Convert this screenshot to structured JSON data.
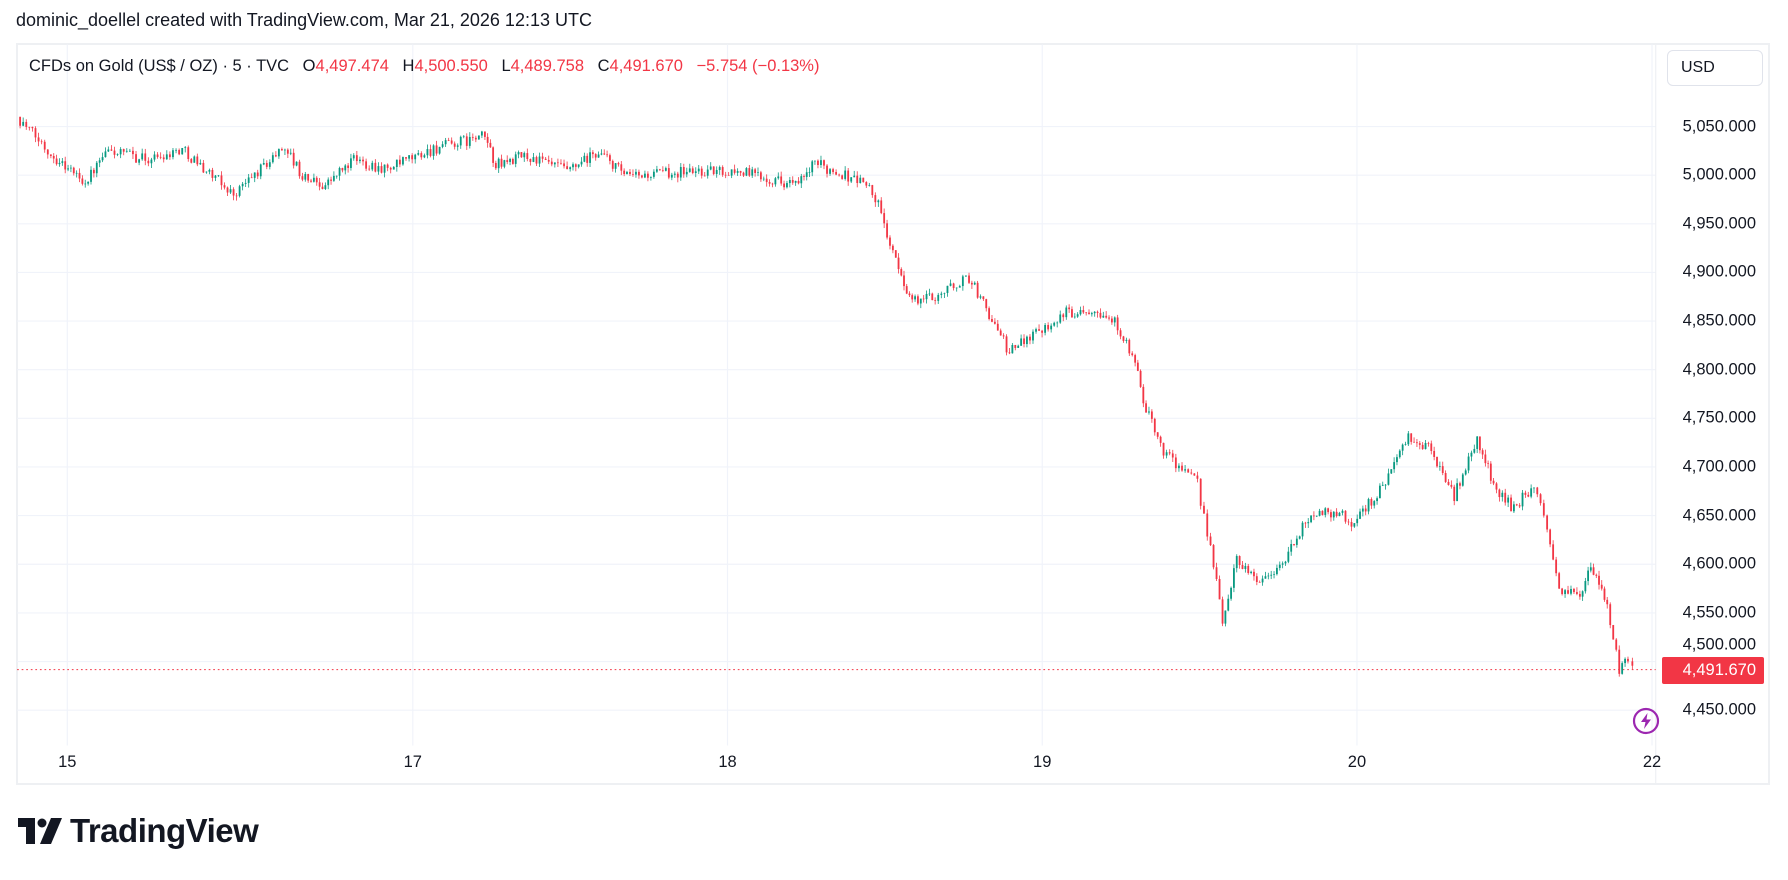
{
  "header": {
    "attribution": "dominic_doellel created with TradingView.com, Mar 21, 2026 12:13 UTC"
  },
  "legend": {
    "symbol": "CFDs on Gold (US$ / OZ) · 5 · TVC",
    "open_label": "O",
    "open": "4,497.474",
    "high_label": "H",
    "high": "4,500.550",
    "low_label": "L",
    "low": "4,489.758",
    "close_label": "C",
    "close": "4,491.670",
    "change": "−5.754 (−0.13%)"
  },
  "currency_button": "USD",
  "last_price_badge": "4,491.670",
  "brand": {
    "name": "TradingView"
  },
  "colors": {
    "up": "#089981",
    "down": "#f23645",
    "grid": "#f0f3fa",
    "alert_icon": "#9c27b0"
  },
  "icons": {
    "alert": "lightning-circle-icon",
    "logo": "tradingview-logo-icon"
  },
  "chart_data": {
    "type": "candlestick",
    "interval": "5",
    "ylim": [
      4400,
      5080
    ],
    "y_ticks": [
      {
        "value": 5050,
        "label": "5,050.000"
      },
      {
        "value": 5000,
        "label": "5,000.000"
      },
      {
        "value": 4950,
        "label": "4,950.000"
      },
      {
        "value": 4900,
        "label": "4,900.000"
      },
      {
        "value": 4850,
        "label": "4,850.000"
      },
      {
        "value": 4800,
        "label": "4,800.000"
      },
      {
        "value": 4750,
        "label": "4,750.000"
      },
      {
        "value": 4700,
        "label": "4,700.000"
      },
      {
        "value": 4650,
        "label": "4,650.000"
      },
      {
        "value": 4600,
        "label": "4,600.000"
      },
      {
        "value": 4550,
        "label": "4,550.000"
      },
      {
        "value": 4500,
        "label": "4,500.000"
      },
      {
        "value": 4450,
        "label": "4,450.000"
      }
    ],
    "x_ticks": [
      {
        "time": "03-15 22:00",
        "label": "15"
      },
      {
        "time": "03-17 00:00",
        "label": "17"
      },
      {
        "time": "03-18 00:00",
        "label": "18"
      },
      {
        "time": "03-19 00:00",
        "label": "19"
      },
      {
        "time": "03-20 00:00",
        "label": "20"
      },
      {
        "time": "03-22 22:00",
        "label": "22"
      }
    ],
    "grid": true,
    "last_price": 4491.67,
    "price_path": [
      [
        "03-13 17:10",
        5060
      ],
      [
        "03-13 19:45",
        5022
      ],
      [
        "03-15 23:10",
        4993
      ],
      [
        "03-16 00:47",
        5025
      ],
      [
        "03-16 03:50",
        5016
      ],
      [
        "03-16 06:25",
        5027
      ],
      [
        "03-16 10:20",
        4980
      ],
      [
        "03-16 14:15",
        5030
      ],
      [
        "03-16 15:35",
        4998
      ],
      [
        "03-16 17:20",
        4990
      ],
      [
        "03-16 19:30",
        5016
      ],
      [
        "03-16 22:05",
        5006
      ],
      [
        "03-17 01:35",
        5027
      ],
      [
        "03-17 05:30",
        5040
      ],
      [
        "03-17 06:20",
        5010
      ],
      [
        "03-17 08:30",
        5020
      ],
      [
        "03-17 12:00",
        5004
      ],
      [
        "03-17 14:10",
        5024
      ],
      [
        "03-17 16:20",
        4998
      ],
      [
        "03-17 20:40",
        5004
      ],
      [
        "03-18 01:00",
        5004
      ],
      [
        "03-18 05:25",
        4990
      ],
      [
        "03-18 06:40",
        5012
      ],
      [
        "03-18 10:35",
        4992
      ],
      [
        "03-18 11:30",
        4969
      ],
      [
        "03-18 12:50",
        4910
      ],
      [
        "03-18 14:05",
        4870
      ],
      [
        "03-18 15:50",
        4876
      ],
      [
        "03-18 18:25",
        4895
      ],
      [
        "03-18 20:10",
        4852
      ],
      [
        "03-18 21:30",
        4817
      ],
      [
        "03-18 22:50",
        4834
      ],
      [
        "03-19 01:50",
        4858
      ],
      [
        "03-19 04:00",
        4864
      ],
      [
        "03-19 05:45",
        4846
      ],
      [
        "03-19 07:05",
        4805
      ],
      [
        "03-19 07:55",
        4758
      ],
      [
        "03-19 09:15",
        4717
      ],
      [
        "03-19 11:50",
        4682
      ],
      [
        "03-19 12:50",
        4618
      ],
      [
        "03-19 13:45",
        4541
      ],
      [
        "03-19 14:50",
        4606
      ],
      [
        "03-19 16:35",
        4582
      ],
      [
        "03-19 18:20",
        4600
      ],
      [
        "03-19 20:30",
        4653
      ],
      [
        "03-19 22:40",
        4653
      ],
      [
        "03-19 23:35",
        4641
      ],
      [
        "03-20 01:45",
        4676
      ],
      [
        "03-20 03:55",
        4729
      ],
      [
        "03-20 05:40",
        4717
      ],
      [
        "03-20 07:25",
        4670
      ],
      [
        "03-20 09:10",
        4729
      ],
      [
        "03-20 10:25",
        4682
      ],
      [
        "03-20 11:45",
        4659
      ],
      [
        "03-20 13:30",
        4676
      ],
      [
        "03-20 14:30",
        4641
      ],
      [
        "03-20 15:25",
        4571
      ],
      [
        "03-20 17:00",
        4571
      ],
      [
        "03-20 17:50",
        4594
      ],
      [
        "03-20 19:05",
        4559
      ],
      [
        "03-20 20:00",
        4489
      ],
      [
        "03-20 20:40",
        4502
      ],
      [
        "03-20 21:00",
        4491.67
      ]
    ]
  }
}
